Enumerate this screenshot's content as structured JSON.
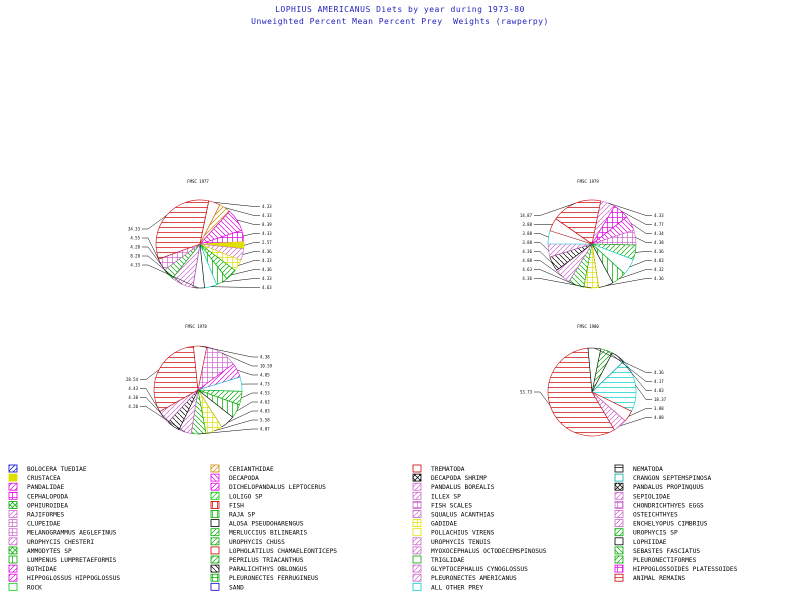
{
  "title": "LOPHIUS AMERICANUS Diets by year during 1973-80",
  "subtitle": "Unweighted Percent Mean Percent Prey  Weights (rawperpy)",
  "legend": [
    {
      "label": "BOLOCERA TUEDIAE",
      "color": "#0000cc",
      "pattern": "hatch"
    },
    {
      "label": "CRUSTACEA",
      "color": "#e0e000",
      "pattern": "solid"
    },
    {
      "label": "PANDALIDAE",
      "color": "#e000e0",
      "pattern": "hatch"
    },
    {
      "label": "CEPHALOPODA",
      "color": "#e000e0",
      "pattern": "grid"
    },
    {
      "label": "OPHIUROIDEA",
      "color": "#00aa00",
      "pattern": "cross"
    },
    {
      "label": "RAJIFORMES",
      "color": "#cc66cc",
      "pattern": "hatch"
    },
    {
      "label": "CLUPEIDAE",
      "color": "#cc66cc",
      "pattern": "grid"
    },
    {
      "label": "MELANOGRAMMUS AEGLEFINUS",
      "color": "#cc66cc",
      "pattern": "grid"
    },
    {
      "label": "UROPHYCIS CHESTERI",
      "color": "#cc66cc",
      "pattern": "hatch"
    },
    {
      "label": "AMMODYTES SP",
      "color": "#00aa00",
      "pattern": "cross"
    },
    {
      "label": "LUMPENUS LUMPRETAEFORMIS",
      "color": "#00aa00",
      "pattern": "vert"
    },
    {
      "label": "BOTHIDAE",
      "color": "#e000e0",
      "pattern": "hatch"
    },
    {
      "label": "HIPPOGLOSSUS HIPPOGLOSSUS",
      "color": "#e000e0",
      "pattern": "hatch"
    },
    {
      "label": "ROCK",
      "color": "#00cc00",
      "pattern": "outline"
    },
    {
      "label": "CERIANTHIDAE",
      "color": "#cc8800",
      "pattern": "hatch"
    },
    {
      "label": "DECAPODA",
      "color": "#e000e0",
      "pattern": "diag"
    },
    {
      "label": "DICHELOPANDALUS LEPTOCERUS",
      "color": "#e000e0",
      "pattern": "hatch"
    },
    {
      "label": "LOLIGO SP",
      "color": "#00cc00",
      "pattern": "hatch"
    },
    {
      "label": "FISH",
      "color": "#cc0000",
      "pattern": "vert"
    },
    {
      "label": "RAJA SP",
      "color": "#00aa00",
      "pattern": "vert"
    },
    {
      "label": "ALOSA PSEUDOHARENGUS",
      "color": "#000000",
      "pattern": "outline"
    },
    {
      "label": "MERLUCCIUS BILINEARIS",
      "color": "#00aa00",
      "pattern": "hatch"
    },
    {
      "label": "UROPHYCIS CHUSS",
      "color": "#00aa00",
      "pattern": "hatch"
    },
    {
      "label": "LOPHOLATILUS CHAMAELEONTICEPS",
      "color": "#cc0000",
      "pattern": "outline"
    },
    {
      "label": "PEPRILUS TRIACANTHUS",
      "color": "#00aa00",
      "pattern": "hatch"
    },
    {
      "label": "PARALICHTHYS OBLONGUS",
      "color": "#000000",
      "pattern": "diag"
    },
    {
      "label": "PLEURONECTES FERRUGINEUS",
      "color": "#00aa00",
      "pattern": "grid"
    },
    {
      "label": "SAND",
      "color": "#0000cc",
      "pattern": "outline"
    },
    {
      "label": "TREMATODA",
      "color": "#cc0000",
      "pattern": "outline"
    },
    {
      "label": "DECAPODA SHRIMP",
      "color": "#000000",
      "pattern": "cross"
    },
    {
      "label": "PANDALUS BOREALIS",
      "color": "#cc66cc",
      "pattern": "hatch"
    },
    {
      "label": "ILLEX SP",
      "color": "#cc66cc",
      "pattern": "hatch"
    },
    {
      "label": "FISH SCALES",
      "color": "#cc66cc",
      "pattern": "grid"
    },
    {
      "label": "SQUALUS ACANTHIAS",
      "color": "#cc66cc",
      "pattern": "hatch"
    },
    {
      "label": "GADIDAE",
      "color": "#e0e000",
      "pattern": "grid"
    },
    {
      "label": "POLLACHIUS VIRENS",
      "color": "#e0e000",
      "pattern": "outline"
    },
    {
      "label": "UROPHYCIS TENUIS",
      "color": "#cc66cc",
      "pattern": "hatch"
    },
    {
      "label": "MYOXOCEPHALUS OCTODECEMSPINOSUS",
      "color": "#cc66cc",
      "pattern": "hatch"
    },
    {
      "label": "TRIGLIDAE",
      "color": "#00aa00",
      "pattern": "outline"
    },
    {
      "label": "GLYPTOCEPHALUS CYNOGLOSSUS",
      "color": "#cc66cc",
      "pattern": "hatch"
    },
    {
      "label": "PLEURONECTES AMERICANUS",
      "color": "#cc66cc",
      "pattern": "hatch"
    },
    {
      "label": "ALL OTHER PREY",
      "color": "#00cccc",
      "pattern": "outline"
    },
    {
      "label": "NEMATODA",
      "color": "#000000",
      "pattern": "horiz"
    },
    {
      "label": "CRANGON SEPTEMSPINOSA",
      "color": "#00aaaa",
      "pattern": "outline"
    },
    {
      "label": "PANDALUS PROPINQUUS",
      "color": "#000000",
      "pattern": "cross"
    },
    {
      "label": "SEPIOLIDAE",
      "color": "#cc66cc",
      "pattern": "hatch"
    },
    {
      "label": "CHONDRICHTHYES EGGS",
      "color": "#cc66cc",
      "pattern": "grid"
    },
    {
      "label": "OSTEICHTHYES",
      "color": "#cc66cc",
      "pattern": "hatch"
    },
    {
      "label": "ENCHELYOPUS CIMBRIUS",
      "color": "#cc66cc",
      "pattern": "hatch"
    },
    {
      "label": "UROPHYCIS SP",
      "color": "#00aa00",
      "pattern": "hatch"
    },
    {
      "label": "LOPHIIDAE",
      "color": "#000000",
      "pattern": "outline"
    },
    {
      "label": "SEBASTES FASCIATUS",
      "color": "#00aa00",
      "pattern": "diag"
    },
    {
      "label": "PLEURONECTIFORMES",
      "color": "#00aa00",
      "pattern": "hatch"
    },
    {
      "label": "HIPPOGLOSSOIDES PLATESSOIDES",
      "color": "#e000e0",
      "pattern": "grid"
    },
    {
      "label": "ANIMAL REMAINS",
      "color": "#cc0000",
      "pattern": "horiz"
    }
  ],
  "chart_data": [
    {
      "type": "pie",
      "title": "FMSC 1977",
      "slices": [
        {
          "label": "4.33",
          "value": 4.33,
          "color": "#cc0000",
          "pattern": "outline"
        },
        {
          "label": "4.33",
          "value": 4.33,
          "color": "#cc8800",
          "pattern": "hatch"
        },
        {
          "label": "8.39",
          "value": 8.39,
          "color": "#e000e0",
          "pattern": "diag"
        },
        {
          "label": "4.33",
          "value": 4.33,
          "color": "#e000e0",
          "pattern": "grid"
        },
        {
          "label": "2.57",
          "value": 2.57,
          "color": "#e0e000",
          "pattern": "solid"
        },
        {
          "label": "4.36",
          "value": 4.36,
          "color": "#cc66cc",
          "pattern": "hatch"
        },
        {
          "label": "4.33",
          "value": 4.33,
          "color": "#e0e000",
          "pattern": "grid"
        },
        {
          "label": "4.36",
          "value": 4.36,
          "color": "#00aa00",
          "pattern": "hatch"
        },
        {
          "label": "4.33",
          "value": 4.33,
          "color": "#00aa00",
          "pattern": "vert"
        },
        {
          "label": "4.63",
          "value": 4.63,
          "color": "#00cccc",
          "pattern": "outline"
        },
        {
          "label": "4.33",
          "value": 4.33,
          "color": "#000000",
          "pattern": "outline"
        },
        {
          "label": "8.28",
          "value": 8.28,
          "color": "#cc66cc",
          "pattern": "hatch"
        },
        {
          "label": "4.28",
          "value": 4.28,
          "color": "#00aa00",
          "pattern": "diag"
        },
        {
          "label": "4.55",
          "value": 4.55,
          "color": "#cc66cc",
          "pattern": "grid"
        },
        {
          "label": "34.33",
          "value": 34.33,
          "color": "#cc0000",
          "pattern": "horiz"
        }
      ]
    },
    {
      "type": "pie",
      "title": "FMSC 1978",
      "slices": [
        {
          "label": "10.59",
          "value": 10.59,
          "color": "#cc66cc",
          "pattern": "grid"
        },
        {
          "label": "4.85",
          "value": 4.85,
          "color": "#e000e0",
          "pattern": "hatch"
        },
        {
          "label": "4.73",
          "value": 4.73,
          "color": "#00cccc",
          "pattern": "outline"
        },
        {
          "label": "4.53",
          "value": 4.53,
          "color": "#00aa00",
          "pattern": "hatch"
        },
        {
          "label": "4.63",
          "value": 4.63,
          "color": "#00aa00",
          "pattern": "vert"
        },
        {
          "label": "4.83",
          "value": 4.83,
          "color": "#000000",
          "pattern": "outline"
        },
        {
          "label": "5.58",
          "value": 5.58,
          "color": "#e0e000",
          "pattern": "grid"
        },
        {
          "label": "4.87",
          "value": 4.87,
          "color": "#00aa00",
          "pattern": "diag"
        },
        {
          "label": "4.20",
          "value": 4.2,
          "color": "#cc66cc",
          "pattern": "hatch"
        },
        {
          "label": "4.38",
          "value": 4.38,
          "color": "#000000",
          "pattern": "diag"
        },
        {
          "label": "4.43",
          "value": 4.43,
          "color": "#cc66cc",
          "pattern": "hatch"
        },
        {
          "label": "28.54",
          "value": 28.54,
          "color": "#cc0000",
          "pattern": "horiz"
        },
        {
          "label": "4.38",
          "value": 4.38,
          "color": "#cc0000",
          "pattern": "outline"
        }
      ]
    },
    {
      "type": "pie",
      "title": "FMSC 1979",
      "slices": [
        {
          "label": "4.33",
          "value": 4.33,
          "color": "#cc66cc",
          "pattern": "hatch"
        },
        {
          "label": "4.77",
          "value": 4.77,
          "color": "#e000e0",
          "pattern": "grid"
        },
        {
          "label": "4.34",
          "value": 4.34,
          "color": "#e000e0",
          "pattern": "diag"
        },
        {
          "label": "4.38",
          "value": 4.38,
          "color": "#cc66cc",
          "pattern": "grid"
        },
        {
          "label": "4.36",
          "value": 4.36,
          "color": "#00aa00",
          "pattern": "hatch"
        },
        {
          "label": "4.83",
          "value": 4.83,
          "color": "#00cccc",
          "pattern": "outline"
        },
        {
          "label": "4.32",
          "value": 4.32,
          "color": "#00aa00",
          "pattern": "vert"
        },
        {
          "label": "4.36",
          "value": 4.36,
          "color": "#000000",
          "pattern": "outline"
        },
        {
          "label": "4.36",
          "value": 4.36,
          "color": "#e0e000",
          "pattern": "grid"
        },
        {
          "label": "4.63",
          "value": 4.63,
          "color": "#00aa00",
          "pattern": "diag"
        },
        {
          "label": "4.88",
          "value": 4.88,
          "color": "#cc66cc",
          "pattern": "hatch"
        },
        {
          "label": "4.36",
          "value": 4.36,
          "color": "#000000",
          "pattern": "diag"
        },
        {
          "label": "3.88",
          "value": 3.88,
          "color": "#cc66cc",
          "pattern": "hatch"
        },
        {
          "label": "3.88",
          "value": 3.88,
          "color": "#00cccc",
          "pattern": "outline"
        },
        {
          "label": "3.88",
          "value": 3.88,
          "color": "#cc0000",
          "pattern": "outline"
        },
        {
          "label": "14.87",
          "value": 14.87,
          "color": "#cc0000",
          "pattern": "horiz"
        }
      ]
    },
    {
      "type": "pie",
      "title": "FMSC 1980",
      "slices": [
        {
          "label": "4.17",
          "value": 4.17,
          "color": "#00aa00",
          "pattern": "hatch"
        },
        {
          "label": "4.83",
          "value": 4.83,
          "color": "#000000",
          "pattern": "outline"
        },
        {
          "label": "18.37",
          "value": 18.37,
          "color": "#00cccc",
          "pattern": "horiz"
        },
        {
          "label": "3.88",
          "value": 3.88,
          "color": "#cc0000",
          "pattern": "outline"
        },
        {
          "label": "4.88",
          "value": 4.88,
          "color": "#cc66cc",
          "pattern": "hatch"
        },
        {
          "label": "53.73",
          "value": 53.73,
          "color": "#cc0000",
          "pattern": "horiz"
        },
        {
          "label": "4.36",
          "value": 4.36,
          "color": "#000000",
          "pattern": "outline"
        }
      ]
    }
  ]
}
